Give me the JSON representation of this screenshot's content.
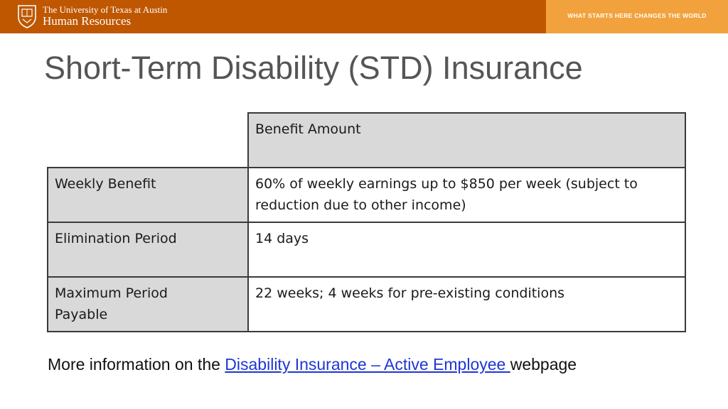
{
  "header": {
    "org_line1": "The University of Texas at Austin",
    "org_line2": "Human Resources",
    "tagline": "WHAT STARTS HERE CHANGES THE WORLD",
    "brand_color": "#bf5700",
    "accent_color": "#f2a23c",
    "logo_icon": "ut-seal-icon"
  },
  "slide": {
    "title": "Short-Term Disability (STD) Insurance"
  },
  "table": {
    "header_label": "Benefit Amount",
    "rows": [
      {
        "label": "Weekly Benefit",
        "value": "60% of weekly earnings up to $850 per week (subject to reduction due to other income)"
      },
      {
        "label": "Elimination Period",
        "value": "14 days"
      },
      {
        "label": "Maximum Period Payable",
        "value": "22 weeks; 4 weeks for pre-existing conditions"
      }
    ]
  },
  "footer": {
    "prefix": "More information on the ",
    "link_text": "Disability Insurance – Active Employee ",
    "suffix": "webpage"
  }
}
